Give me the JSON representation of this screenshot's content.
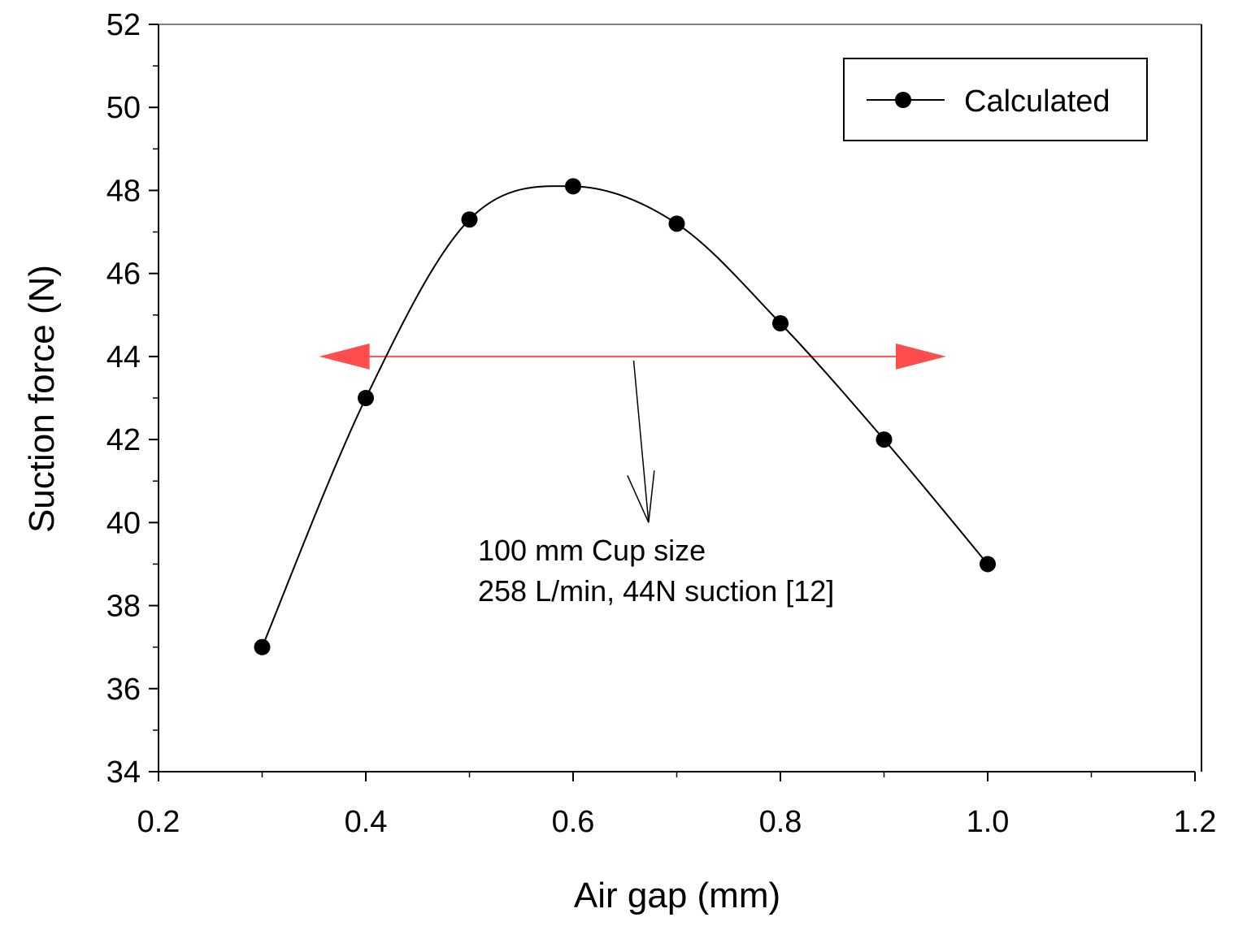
{
  "chart_data": {
    "type": "line",
    "title": "",
    "xlabel": "Air gap (mm)",
    "ylabel": "Suction force (N)",
    "xlim": [
      0.2,
      1.2
    ],
    "ylim": [
      34,
      52
    ],
    "x_ticks": [
      "0.2",
      "0.4",
      "0.6",
      "0.8",
      "1.0",
      "1.2"
    ],
    "y_ticks": [
      "34",
      "36",
      "38",
      "40",
      "42",
      "44",
      "46",
      "48",
      "50",
      "52"
    ],
    "series": [
      {
        "name": "Calculated",
        "x": [
          0.3,
          0.4,
          0.5,
          0.6,
          0.7,
          0.8,
          0.9,
          1.0
        ],
        "values": [
          37.0,
          43.0,
          47.3,
          48.1,
          47.2,
          44.8,
          42.0,
          39.0
        ],
        "color": "#000000",
        "marker": "circle",
        "smooth": true
      }
    ],
    "legend": {
      "position": "top-right",
      "entries": [
        "Calculated"
      ]
    },
    "reference_line": {
      "y": 44,
      "x_from": 0.355,
      "x_to": 0.96,
      "color": "#ff4d4d",
      "style": "double-arrow"
    },
    "annotation": {
      "lines": [
        "100 mm Cup size",
        "258 L/min, 44N suction [12]"
      ],
      "pointer_from": {
        "x": 0.66,
        "y": 44
      },
      "pointer_to": {
        "x": 0.665,
        "y": 40
      }
    }
  }
}
